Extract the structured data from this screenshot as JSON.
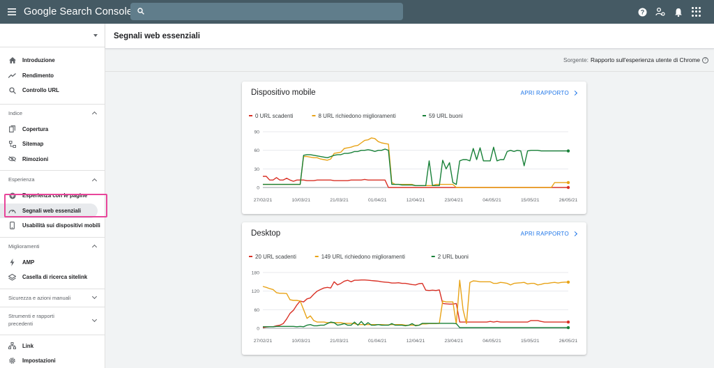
{
  "app": {
    "title": "Google Search Console",
    "search_placeholder": ""
  },
  "sidebar": {
    "top_items": [
      {
        "label": "Introduzione",
        "icon": "home-icon"
      },
      {
        "label": "Rendimento",
        "icon": "trending-up-icon"
      },
      {
        "label": "Controllo URL",
        "icon": "search-icon"
      }
    ],
    "sections": [
      {
        "label": "Indice",
        "items": [
          {
            "label": "Copertura",
            "icon": "copy-icon"
          },
          {
            "label": "Sitemap",
            "icon": "sitemap-icon"
          },
          {
            "label": "Rimozioni",
            "icon": "eye-off-icon"
          }
        ]
      },
      {
        "label": "Esperienza",
        "items": [
          {
            "label": "Esperienza con le pagine",
            "icon": "plus-circle-icon"
          },
          {
            "label": "Segnali web essenziali",
            "icon": "speedometer-icon"
          },
          {
            "label": "Usabilità sui dispositivi mobili",
            "icon": "phone-icon"
          }
        ]
      },
      {
        "label": "Miglioramenti",
        "items": [
          {
            "label": "AMP",
            "icon": "bolt-icon"
          },
          {
            "label": "Casella di ricerca sitelink",
            "icon": "layers-icon"
          }
        ]
      }
    ],
    "collapsed_sections": [
      {
        "label": "Sicurezza e azioni manuali"
      },
      {
        "label": "Strumenti e rapporti precedenti"
      }
    ],
    "bottom_items": [
      {
        "label": "Link",
        "icon": "network-icon"
      },
      {
        "label": "Impostazioni",
        "icon": "settings-icon"
      }
    ]
  },
  "page": {
    "title": "Segnali web essenziali",
    "source_label": "Sorgente:",
    "source_value": "Rapporto sull'esperienza utente di Chrome"
  },
  "cards": [
    {
      "title": "Dispositivo mobile",
      "action": "APRI RAPPORTO"
    },
    {
      "title": "Desktop",
      "action": "APRI RAPPORTO"
    }
  ],
  "colors": {
    "poor": "#d93025",
    "needs_improvement": "#e8a317",
    "good": "#188038",
    "topbar": "#455a64"
  },
  "chart_data": [
    {
      "type": "line",
      "x_ticks": [
        "27/02/21",
        "10/03/21",
        "21/03/21",
        "01/04/21",
        "12/04/21",
        "23/04/21",
        "04/05/21",
        "15/05/21",
        "26/05/21"
      ],
      "ylim": [
        0,
        90
      ],
      "y_ticks": [
        "0",
        "30",
        "60",
        "90"
      ],
      "grid": true,
      "series": [
        {
          "name": "0 URL scadenti",
          "color": "#d93025",
          "values": [
            18,
            18,
            12,
            12,
            16,
            12,
            12,
            15,
            12,
            10,
            12,
            12,
            12,
            11,
            11,
            11,
            12,
            12,
            12,
            12,
            12,
            11,
            11,
            11,
            11,
            11,
            12,
            12,
            12,
            12,
            13,
            12,
            12,
            12,
            12,
            12,
            12,
            0,
            0,
            0,
            0,
            0,
            0,
            0,
            0,
            0,
            0,
            0,
            0,
            0,
            0,
            0,
            0,
            0,
            0,
            0,
            0,
            0,
            0,
            0,
            0,
            0,
            0,
            0,
            0,
            0,
            0,
            0,
            0,
            0,
            0,
            0,
            0,
            0,
            0,
            0,
            0,
            0,
            0,
            0,
            0,
            0,
            0,
            0,
            0,
            0,
            0,
            0,
            0,
            0,
            0
          ]
        },
        {
          "name": "8 URL richiedono miglioramenti",
          "color": "#e8a317",
          "values": [
            5,
            5,
            5,
            5,
            5,
            5,
            5,
            5,
            5,
            5,
            5,
            5,
            50,
            50,
            49,
            48,
            48,
            46,
            45,
            44,
            46,
            55,
            56,
            57,
            63,
            64,
            65,
            67,
            68,
            72,
            76,
            77,
            80,
            79,
            74,
            72,
            71,
            70,
            8,
            5,
            5,
            5,
            5,
            5,
            5,
            3,
            3,
            3,
            3,
            3,
            3,
            5,
            5,
            5,
            5,
            5,
            5,
            0,
            0,
            0,
            0,
            0,
            0,
            0,
            0,
            0,
            0,
            0,
            0,
            0,
            0,
            0,
            0,
            0,
            0,
            0,
            0,
            0,
            0,
            0,
            0,
            0,
            0,
            0,
            0,
            0,
            8,
            8,
            8,
            8,
            8
          ]
        },
        {
          "name": "59 URL buoni",
          "color": "#188038",
          "values": [
            5,
            5,
            5,
            5,
            5,
            5,
            5,
            5,
            5,
            5,
            5,
            5,
            52,
            53,
            53,
            52,
            51,
            50,
            49,
            48,
            50,
            52,
            53,
            53,
            55,
            55,
            56,
            58,
            58,
            60,
            60,
            61,
            60,
            58,
            60,
            60,
            62,
            60,
            5,
            5,
            5,
            4,
            4,
            4,
            4,
            3,
            3,
            3,
            3,
            43,
            3,
            3,
            3,
            44,
            30,
            40,
            8,
            5,
            43,
            45,
            45,
            43,
            63,
            45,
            64,
            43,
            43,
            43,
            65,
            43,
            45,
            45,
            58,
            60,
            58,
            60,
            59,
            35,
            59,
            60,
            60,
            60,
            59,
            59,
            59,
            59,
            59,
            59,
            59,
            59,
            59
          ]
        }
      ]
    },
    {
      "type": "line",
      "x_ticks": [
        "27/02/21",
        "10/03/21",
        "21/03/21",
        "01/04/21",
        "12/04/21",
        "23/04/21",
        "04/05/21",
        "15/05/21",
        "26/05/21"
      ],
      "ylim": [
        0,
        180
      ],
      "y_ticks": [
        "0",
        "60",
        "120",
        "180"
      ],
      "grid": true,
      "series": [
        {
          "name": "20 URL scadenti",
          "color": "#d93025",
          "values": [
            2,
            4,
            5,
            5,
            8,
            10,
            15,
            30,
            48,
            58,
            75,
            88,
            85,
            95,
            98,
            110,
            120,
            125,
            130,
            132,
            130,
            150,
            140,
            145,
            152,
            155,
            150,
            155,
            155,
            156,
            156,
            155,
            154,
            153,
            152,
            150,
            149,
            148,
            146,
            146,
            147,
            145,
            145,
            143,
            141,
            140,
            144,
            145,
            123,
            122,
            123,
            122,
            124,
            80,
            79,
            78,
            78,
            80,
            20,
            20,
            20,
            20,
            20,
            20,
            20,
            20,
            20,
            22,
            20,
            22,
            20,
            20,
            20,
            20,
            20,
            20,
            20,
            20,
            20,
            25,
            25,
            25,
            22,
            20,
            20,
            20,
            20,
            20,
            20,
            20,
            20
          ]
        },
        {
          "name": "149 URL richiedono miglioramenti",
          "color": "#e8a317",
          "values": [
            135,
            132,
            128,
            125,
            115,
            113,
            113,
            112,
            92,
            90,
            90,
            88,
            60,
            32,
            40,
            25,
            20,
            20,
            20,
            18,
            18,
            18,
            18,
            18,
            16,
            16,
            16,
            15,
            12,
            12,
            12,
            12,
            12,
            12,
            12,
            12,
            11,
            11,
            12,
            12,
            12,
            12,
            10,
            10,
            10,
            10,
            10,
            14,
            14,
            15,
            15,
            15,
            16,
            88,
            85,
            85,
            85,
            14,
            155,
            60,
            15,
            148,
            153,
            152,
            150,
            150,
            150,
            150,
            145,
            145,
            148,
            147,
            145,
            140,
            145,
            146,
            147,
            148,
            143,
            145,
            145,
            140,
            142,
            145,
            145,
            147,
            148,
            146,
            148,
            149,
            149
          ]
        },
        {
          "name": "2 URL buoni",
          "color": "#188038",
          "values": [
            5,
            5,
            5,
            5,
            6,
            6,
            6,
            6,
            6,
            6,
            5,
            6,
            5,
            10,
            12,
            8,
            8,
            10,
            10,
            15,
            20,
            18,
            10,
            12,
            15,
            10,
            10,
            20,
            10,
            22,
            10,
            18,
            10,
            10,
            12,
            10,
            10,
            10,
            15,
            10,
            10,
            10,
            8,
            10,
            15,
            8,
            10,
            16,
            16,
            16,
            16,
            16,
            16,
            16,
            16,
            16,
            16,
            15,
            2,
            2,
            2,
            2,
            2,
            2,
            2,
            2,
            2,
            2,
            2,
            2,
            2,
            2,
            2,
            2,
            2,
            2,
            2,
            2,
            2,
            2,
            2,
            2,
            2,
            2,
            2,
            2,
            2,
            2,
            2,
            2,
            2
          ]
        }
      ]
    }
  ]
}
